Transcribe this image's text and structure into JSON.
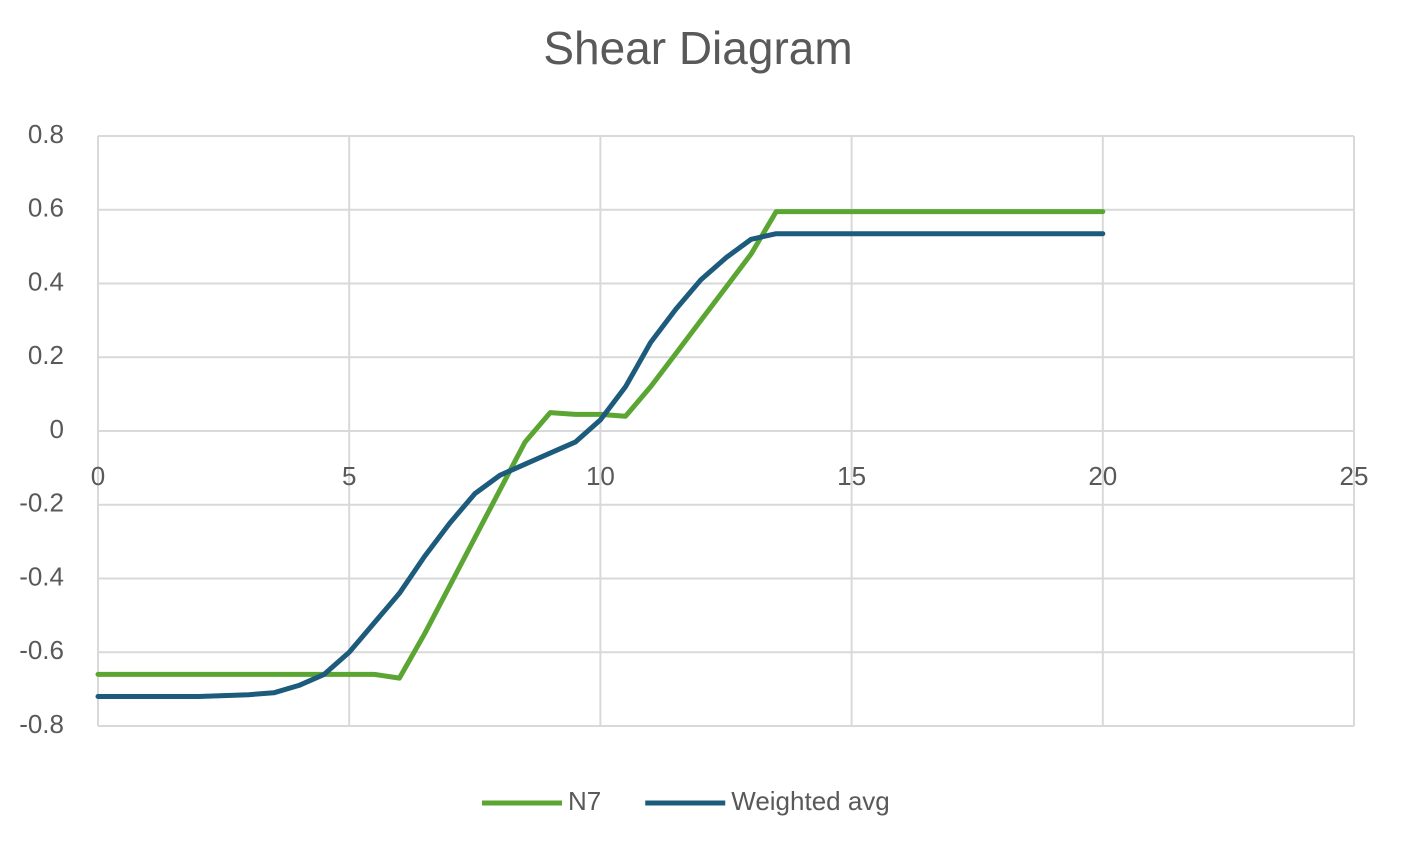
{
  "chart_data": {
    "type": "line",
    "title": "Shear Diagram",
    "x": [
      0,
      2,
      3,
      3.5,
      4,
      4.5,
      5,
      5.5,
      6,
      6.5,
      7,
      7.5,
      8,
      8.5,
      9,
      9.5,
      10,
      10.5,
      11,
      11.5,
      12,
      12.5,
      13,
      13.5,
      14,
      20
    ],
    "series": [
      {
        "name": "N7",
        "color": "#5ba532",
        "values": [
          -0.66,
          -0.66,
          -0.66,
          -0.66,
          -0.66,
          -0.66,
          -0.66,
          -0.66,
          -0.67,
          -0.55,
          -0.42,
          -0.29,
          -0.16,
          -0.03,
          0.05,
          0.045,
          0.045,
          0.04,
          0.12,
          0.21,
          0.3,
          0.39,
          0.48,
          0.595,
          0.595,
          0.595
        ]
      },
      {
        "name": "Weighted avg",
        "color": "#1c5b7b",
        "values": [
          -0.72,
          -0.72,
          -0.715,
          -0.71,
          -0.69,
          -0.66,
          -0.6,
          -0.52,
          -0.44,
          -0.34,
          -0.25,
          -0.17,
          -0.12,
          -0.09,
          -0.06,
          -0.03,
          0.03,
          0.12,
          0.24,
          0.33,
          0.41,
          0.47,
          0.52,
          0.535,
          0.535,
          0.535
        ]
      }
    ],
    "xlim": [
      0,
      25
    ],
    "xticks": [
      0,
      5,
      10,
      15,
      20,
      25
    ],
    "ylim": [
      -0.8,
      0.8
    ],
    "yticks": [
      -0.8,
      -0.6,
      -0.4,
      -0.2,
      0,
      0.2,
      0.4,
      0.6,
      0.8
    ],
    "grid": true,
    "legend": "bottom"
  }
}
